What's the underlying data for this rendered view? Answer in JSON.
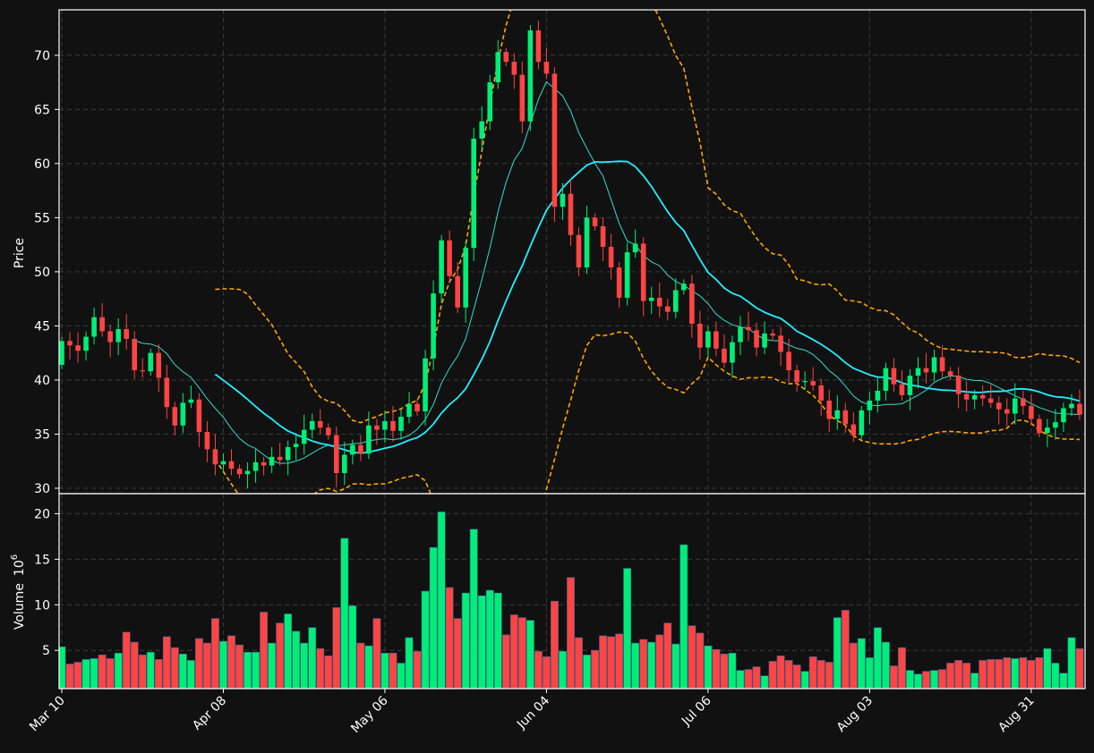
{
  "chart_data": {
    "type": "candlestick",
    "style": {
      "background": "#111111",
      "panel_border": "#ffffff",
      "grid_color": "#3a3a3a",
      "up_color": "#00ee77",
      "down_color": "#ff4444",
      "ma_fast_color": "#33ddcc",
      "ma_slow_color": "#22eeff",
      "band_color": "#ffa500"
    },
    "price_panel": {
      "ylabel": "Price",
      "ylim": [
        29.5,
        74.2
      ],
      "yticks": [
        30,
        35,
        40,
        45,
        50,
        55,
        60,
        65,
        70
      ],
      "grid": true
    },
    "volume_panel": {
      "ylabel": "Volume",
      "ylabel_exponent": "6",
      "ylim": [
        0.8,
        22.2
      ],
      "yticks": [
        5,
        10,
        15,
        20
      ],
      "grid": true
    },
    "x_axis": {
      "n_bars": 127,
      "ticks": [
        {
          "index": 0,
          "label": "Mar 10"
        },
        {
          "index": 20,
          "label": "Apr 08"
        },
        {
          "index": 40,
          "label": "May 06"
        },
        {
          "index": 60,
          "label": "Jun 04"
        },
        {
          "index": 80,
          "label": "Jul 06"
        },
        {
          "index": 100,
          "label": "Aug 03"
        },
        {
          "index": 120,
          "label": "Aug 31"
        }
      ]
    },
    "closes": [
      43.6,
      43.2,
      42.7,
      44.0,
      45.8,
      44.5,
      43.5,
      44.7,
      43.8,
      40.9,
      40.8,
      42.5,
      40.2,
      37.5,
      35.8,
      37.9,
      38.2,
      35.2,
      33.6,
      32.2,
      32.5,
      31.8,
      31.3,
      31.6,
      32.4,
      32.1,
      32.9,
      32.6,
      33.8,
      34.1,
      35.4,
      36.2,
      35.6,
      34.9,
      31.4,
      33.1,
      34.0,
      33.2,
      35.8,
      35.4,
      36.2,
      35.3,
      36.6,
      37.8,
      37.1,
      42.0,
      48.0,
      52.9,
      49.6,
      46.7,
      52.2,
      62.3,
      63.9,
      67.5,
      70.3,
      69.4,
      68.2,
      63.9,
      72.3,
      69.4,
      68.3,
      56.0,
      57.2,
      53.4,
      50.4,
      55.0,
      54.2,
      52.3,
      50.4,
      47.6,
      51.8,
      52.6,
      47.3,
      47.6,
      46.8,
      46.3,
      48.3,
      48.9,
      45.2,
      43.0,
      44.5,
      42.9,
      41.6,
      43.5,
      44.9,
      44.6,
      43.0,
      44.3,
      44.1,
      42.6,
      40.9,
      39.8,
      39.9,
      39.5,
      38.1,
      36.4,
      37.2,
      35.9,
      34.9,
      37.2,
      38.1,
      39.0,
      41.1,
      39.6,
      38.6,
      40.4,
      41.1,
      40.7,
      42.1,
      40.8,
      40.4,
      38.7,
      38.2,
      38.6,
      38.3,
      37.9,
      37.3,
      36.9,
      38.3,
      37.6,
      36.4,
      35.1,
      35.6,
      36.1,
      37.4,
      37.8,
      36.8
    ],
    "volumes": [
      5.4,
      3.5,
      3.7,
      4.0,
      4.1,
      4.5,
      4.1,
      4.7,
      7.0,
      5.9,
      4.5,
      4.8,
      4.0,
      6.5,
      5.3,
      4.6,
      3.9,
      6.3,
      5.8,
      8.5,
      6.0,
      6.6,
      5.6,
      4.8,
      4.8,
      9.2,
      5.8,
      8.0,
      9.0,
      7.1,
      5.8,
      7.5,
      5.2,
      4.4,
      9.7,
      17.3,
      9.9,
      5.8,
      5.5,
      8.5,
      4.7,
      4.7,
      3.6,
      6.4,
      4.9,
      11.5,
      16.3,
      20.2,
      11.9,
      8.5,
      11.3,
      18.3,
      11.0,
      11.6,
      11.3,
      6.7,
      8.9,
      8.6,
      8.3,
      4.9,
      4.3,
      10.4,
      4.9,
      13.0,
      6.4,
      4.5,
      5.0,
      6.6,
      6.5,
      6.8,
      14.0,
      5.8,
      6.2,
      5.9,
      6.7,
      8.0,
      5.7,
      16.6,
      7.7,
      6.9,
      5.5,
      5.1,
      4.6,
      4.7,
      2.8,
      2.9,
      3.2,
      2.2,
      3.8,
      4.4,
      3.9,
      3.4,
      2.7,
      4.3,
      3.9,
      3.7,
      8.6,
      9.4,
      5.8,
      6.3,
      4.2,
      7.5,
      5.9,
      3.3,
      5.3,
      2.8,
      2.4,
      2.7,
      2.8,
      2.9,
      3.6,
      3.9,
      3.6,
      2.5,
      3.9,
      4.0,
      4.0,
      4.2,
      4.1,
      4.2,
      3.9,
      4.2,
      5.2,
      3.6,
      2.5,
      6.4,
      5.2
    ],
    "series": [
      {
        "kind": "candles",
        "opens_are_previous_close": true
      },
      {
        "kind": "moving_average",
        "period": 10
      },
      {
        "kind": "moving_average",
        "period": 20
      },
      {
        "kind": "bands",
        "basis_period": 20,
        "multiplier": 2
      }
    ]
  }
}
